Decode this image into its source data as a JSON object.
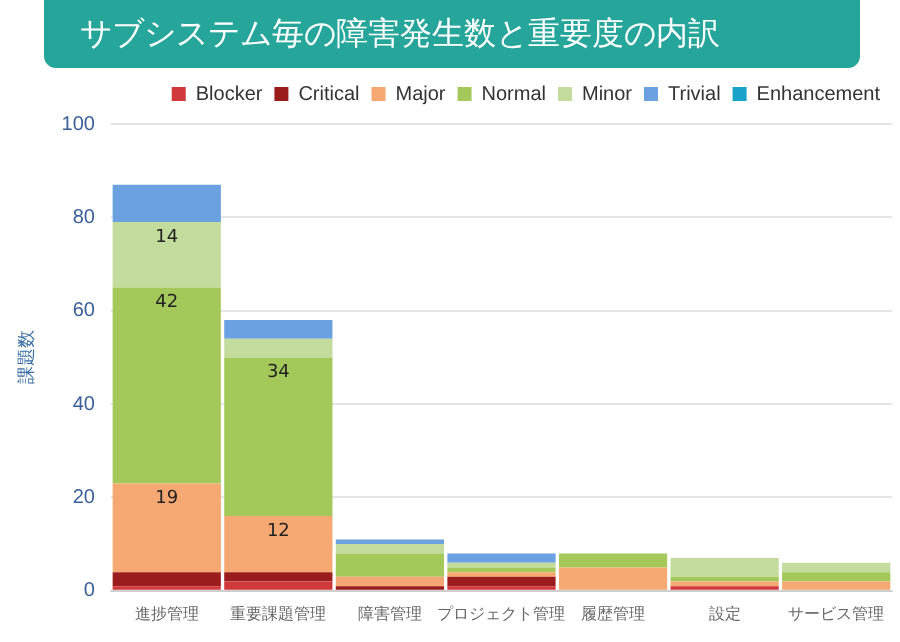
{
  "chart_data": {
    "type": "bar",
    "title": "サブシステム毎の障害発生数と重要度の内訳",
    "ylabel": "課題数",
    "categories": [
      "進捗管理",
      "重要課題管理",
      "障害管理",
      "プロジェクト管理",
      "履歴管理",
      "設定",
      "サービス管理"
    ],
    "stacked": true,
    "ylim": [
      0,
      100
    ],
    "yticks": [
      0,
      20,
      40,
      60,
      80,
      100
    ],
    "grid": "y",
    "legend": "top",
    "series": [
      {
        "name": "Blocker",
        "color": "#d0383c",
        "values": [
          1,
          2,
          0,
          1,
          0,
          1,
          0
        ]
      },
      {
        "name": "Critical",
        "color": "#9b1c1c",
        "values": [
          3,
          2,
          1,
          2,
          0,
          0,
          0
        ]
      },
      {
        "name": "Major",
        "color": "#f5a872",
        "values": [
          19,
          12,
          2,
          1,
          5,
          1,
          2
        ],
        "value_labels": [
          "19",
          "12",
          null,
          null,
          null,
          null,
          null
        ]
      },
      {
        "name": "Normal",
        "color": "#a4c95a",
        "values": [
          42,
          34,
          5,
          1,
          3,
          1,
          2
        ],
        "value_labels": [
          "42",
          "34",
          null,
          null,
          null,
          null,
          null
        ]
      },
      {
        "name": "Minor",
        "color": "#c3dc9e",
        "values": [
          14,
          4,
          2,
          1,
          0,
          4,
          2
        ],
        "value_labels": [
          "14",
          null,
          null,
          null,
          null,
          null,
          null
        ]
      },
      {
        "name": "Trivial",
        "color": "#6ba1e0",
        "values": [
          8,
          4,
          1,
          2,
          0,
          0,
          0
        ]
      },
      {
        "name": "Enhancement",
        "color": "#1aa3c8",
        "values": [
          0,
          0,
          0,
          0,
          0,
          0,
          0
        ]
      }
    ]
  }
}
